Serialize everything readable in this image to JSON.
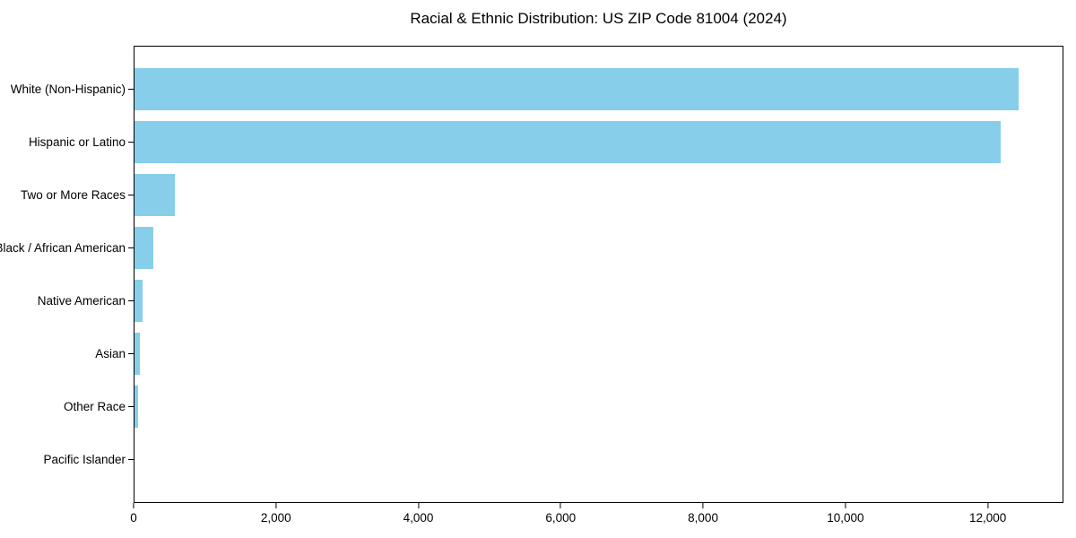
{
  "chart_data": {
    "type": "bar",
    "orientation": "horizontal",
    "title": "Racial & Ethnic Distribution: US ZIP Code 81004 (2024)",
    "categories": [
      "White (Non-Hispanic)",
      "Hispanic or Latino",
      "Two or More Races",
      "Black / African American",
      "Native American",
      "Asian",
      "Other Race",
      "Pacific Islander"
    ],
    "values": [
      12440,
      12190,
      570,
      270,
      115,
      80,
      55,
      0
    ],
    "xlabel": "",
    "ylabel": "",
    "xlim": [
      0,
      13063
    ],
    "x_ticks": [
      0,
      2000,
      4000,
      6000,
      8000,
      10000,
      12000
    ],
    "x_tick_labels": [
      "0",
      "2,000",
      "4,000",
      "6,000",
      "8,000",
      "10,000",
      "12,000"
    ],
    "bar_color": "#87CEEB",
    "axis_color": "#000000",
    "text_color": "#000000",
    "grid": false,
    "legend": false
  }
}
